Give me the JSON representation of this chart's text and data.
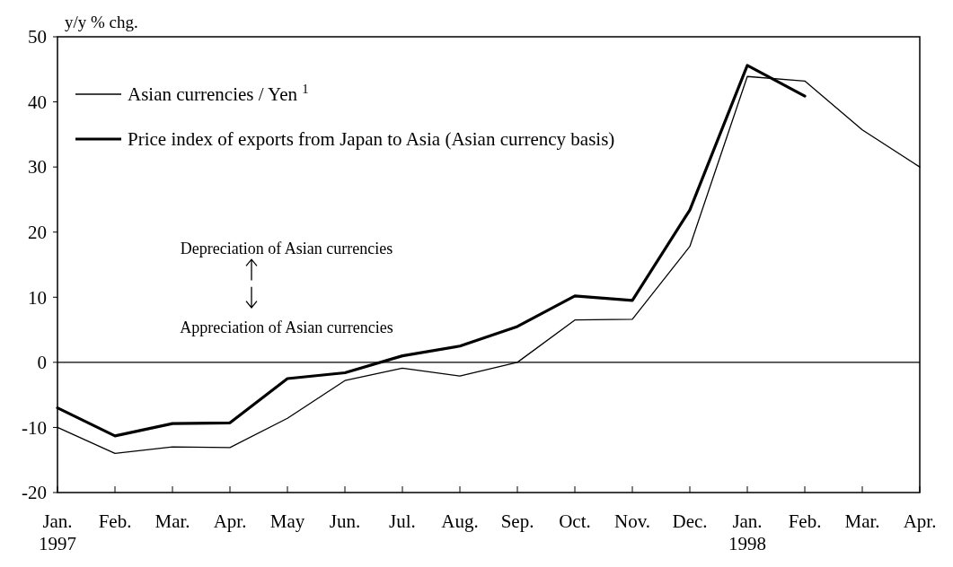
{
  "chart_data": {
    "type": "line",
    "ylabel": "y/y % chg.",
    "categories": [
      "Jan.\n1997",
      "Feb.",
      "Mar.",
      "Apr.",
      "May",
      "Jun.",
      "Jul.",
      "Aug.",
      "Sep.",
      "Oct.",
      "Nov.",
      "Dec.",
      "Jan.\n1998",
      "Feb.",
      "Mar.",
      "Apr."
    ],
    "series": [
      {
        "name": "Asian currencies / Yen $^{1}$",
        "color": "#000000",
        "values": [
          -10,
          -14,
          -13,
          -13.1,
          -8.6,
          -2.8,
          -0.9,
          -2.1,
          0,
          6.5,
          6.6,
          17.8,
          43.9,
          43.2,
          35.7,
          30
        ]
      },
      {
        "name": "Price index of exports from Japan to Asia (Asian currency basis)",
        "color": "#000000",
        "values": [
          -7,
          -11.3,
          -9.4,
          -9.3,
          -2.5,
          -1.6,
          1,
          2.5,
          5.5,
          10.2,
          9.5,
          23.4,
          45.6,
          40.9,
          null,
          null
        ]
      }
    ],
    "ylim": [
      -20,
      50
    ],
    "yticks": [
      -20,
      -10,
      0,
      10,
      20,
      30,
      40,
      50
    ],
    "grid": false,
    "legend": "top left",
    "marker": "none",
    "line_style": "solid",
    "ref_lines": [
      {
        "axis": "y",
        "value": 0,
        "label": null,
        "color": "#000000"
      }
    ],
    "annotations": [
      "Depreciation of Asian currencies",
      "Appreciation of Asian currencies"
    ]
  }
}
